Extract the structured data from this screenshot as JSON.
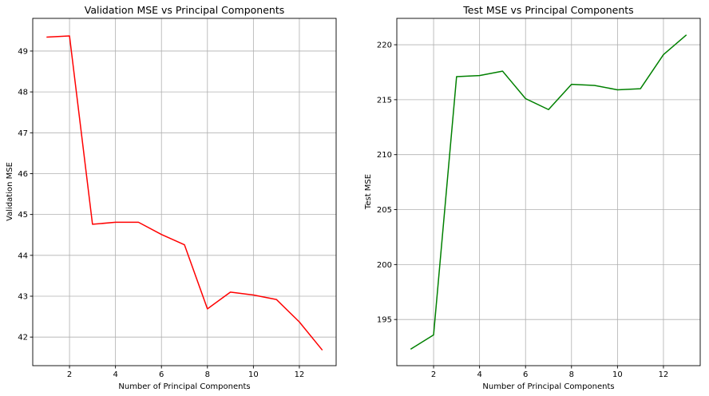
{
  "chart_data": [
    {
      "type": "line",
      "title": "Validation MSE vs Principal Components",
      "xlabel": "Number of Principal Components",
      "ylabel": "Validation MSE",
      "xlim": [
        0.4,
        13.6
      ],
      "ylim": [
        41.3,
        49.8
      ],
      "xticks": [
        2,
        4,
        6,
        8,
        10,
        12
      ],
      "yticks": [
        42,
        43,
        44,
        45,
        46,
        47,
        48,
        49
      ],
      "grid": true,
      "x": [
        1,
        2,
        3,
        4,
        5,
        6,
        7,
        8,
        9,
        10,
        11,
        12,
        13
      ],
      "series": [
        {
          "values": [
            49.34,
            49.37,
            44.76,
            44.81,
            44.81,
            44.51,
            44.26,
            42.69,
            43.1,
            43.03,
            42.92,
            42.37,
            41.68
          ],
          "color": "#ff0000"
        }
      ]
    },
    {
      "type": "line",
      "title": "Test MSE vs Principal Components",
      "xlabel": "Number of Principal Components",
      "ylabel": "Test MSE",
      "xlim": [
        0.4,
        13.6
      ],
      "ylim": [
        190.8,
        222.4
      ],
      "xticks": [
        2,
        4,
        6,
        8,
        10,
        12
      ],
      "yticks": [
        195,
        200,
        205,
        210,
        215,
        220
      ],
      "grid": true,
      "x": [
        1,
        2,
        3,
        4,
        5,
        6,
        7,
        8,
        9,
        10,
        11,
        12,
        13
      ],
      "series": [
        {
          "values": [
            192.3,
            193.6,
            217.1,
            217.2,
            217.6,
            215.1,
            214.1,
            216.4,
            216.3,
            215.9,
            216.0,
            219.1,
            220.9
          ],
          "color": "#008000"
        }
      ]
    }
  ]
}
